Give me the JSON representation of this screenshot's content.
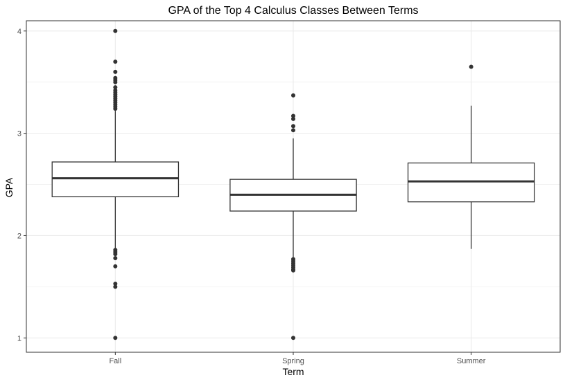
{
  "chart_data": {
    "type": "boxplot",
    "title": "GPA of the Top 4 Calculus Classes Between Terms",
    "xlabel": "Term",
    "ylabel": "GPA",
    "categories": [
      "Fall",
      "Spring",
      "Summer"
    ],
    "ylim": [
      0.86,
      4.1
    ],
    "yticks": [
      1,
      2,
      3,
      4
    ],
    "ytick_labels": [
      "1",
      "2",
      "3",
      "4"
    ],
    "grid": true,
    "colors": {
      "box_stroke": "#333333",
      "box_fill": "#ffffff",
      "grid": "#ebebeb",
      "panel_border": "#333333"
    },
    "boxes": [
      {
        "category": "Fall",
        "whisker_low": 1.87,
        "q1": 2.38,
        "median": 2.56,
        "q3": 2.72,
        "whisker_high": 3.22,
        "outliers": [
          4.0,
          3.7,
          3.6,
          3.54,
          3.52,
          3.5,
          3.45,
          3.42,
          3.4,
          3.38,
          3.36,
          3.34,
          3.32,
          3.3,
          3.28,
          3.26,
          3.24,
          1.86,
          1.84,
          1.82,
          1.78,
          1.7,
          1.53,
          1.5,
          1.0
        ]
      },
      {
        "category": "Spring",
        "whisker_low": 1.79,
        "q1": 2.24,
        "median": 2.4,
        "q3": 2.55,
        "whisker_high": 2.95,
        "outliers": [
          3.37,
          3.17,
          3.14,
          3.07,
          3.03,
          1.77,
          1.75,
          1.73,
          1.71,
          1.69,
          1.67,
          1.66,
          1.0
        ]
      },
      {
        "category": "Summer",
        "whisker_low": 1.87,
        "q1": 2.33,
        "median": 2.53,
        "q3": 2.71,
        "whisker_high": 3.27,
        "outliers": [
          3.65
        ]
      }
    ]
  }
}
